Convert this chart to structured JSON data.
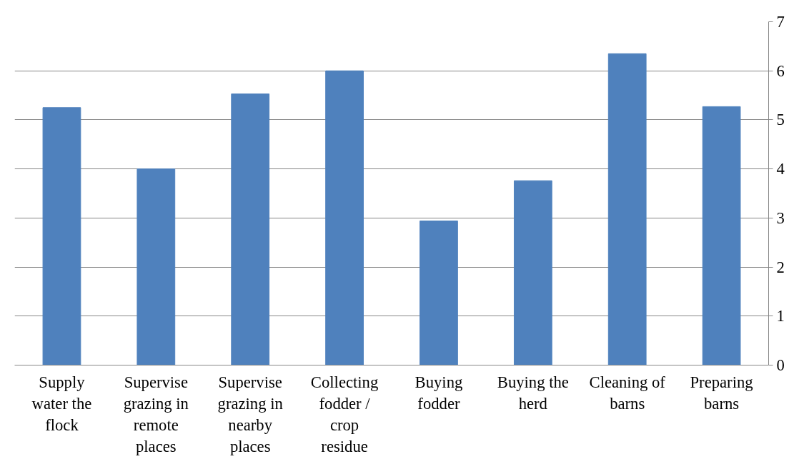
{
  "chart_data": {
    "type": "bar",
    "categories": [
      "Supply water the flock",
      "Supervise grazing in remote places",
      "Supervise grazing in nearby places",
      "Collecting fodder / crop residue",
      "Buying fodder",
      "Buying the herd",
      "Cleaning of barns",
      "Preparing barns"
    ],
    "values": [
      5.25,
      4.0,
      5.53,
      6.0,
      2.94,
      3.76,
      6.35,
      5.27
    ],
    "color": "#4f81bd",
    "ylim": [
      0,
      7
    ],
    "yticks": [
      0,
      1,
      2,
      3,
      4,
      5,
      6,
      7
    ],
    "grid": "y"
  }
}
